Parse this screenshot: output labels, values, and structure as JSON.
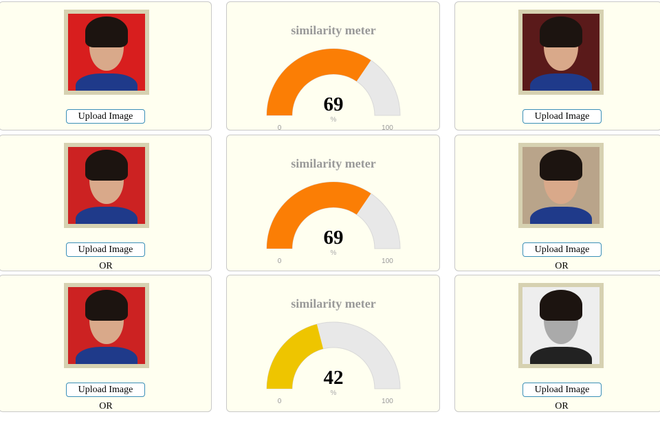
{
  "rows": [
    {
      "left": {
        "button": "Upload Image"
      },
      "meter": {
        "title": "similarity meter",
        "value": 69,
        "unit": "%",
        "min": 0,
        "max": 100,
        "color": "#fb7e05"
      },
      "right": {
        "button": "Upload Image"
      }
    },
    {
      "left": {
        "button": "Upload Image",
        "or": "OR"
      },
      "meter": {
        "title": "similarity meter",
        "value": 69,
        "unit": "%",
        "min": 0,
        "max": 100,
        "color": "#fb7e05"
      },
      "right": {
        "button": "Upload Image",
        "or": "OR"
      }
    },
    {
      "left": {
        "button": "Upload Image",
        "or": "OR"
      },
      "meter": {
        "title": "similarity meter",
        "value": 42,
        "unit": "%",
        "min": 0,
        "max": 100,
        "color": "#eec500"
      },
      "right": {
        "button": "Upload Image",
        "or": "OR"
      }
    }
  ]
}
